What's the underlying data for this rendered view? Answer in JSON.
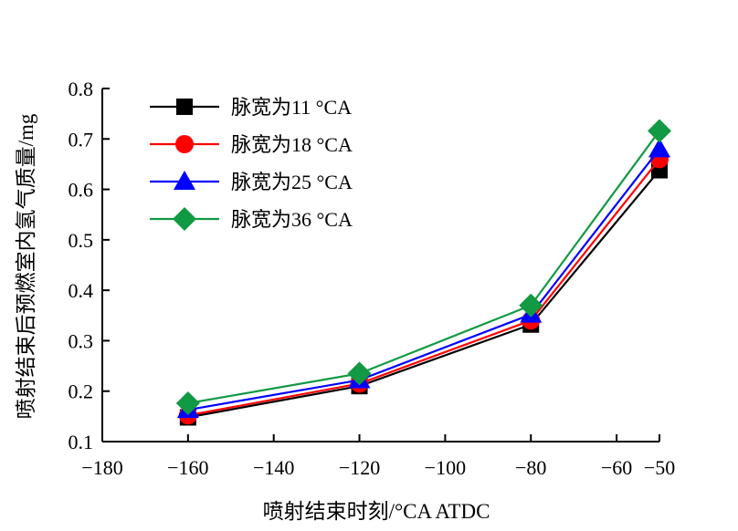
{
  "chart_data": {
    "type": "line",
    "xlabel": "喷射结束时刻/°CA ATDC",
    "ylabel": "喷射结束后预燃室内氢气质量/mg",
    "xlim": [
      -180,
      -50
    ],
    "ylim": [
      0.1,
      0.8
    ],
    "x_ticks": [
      -180,
      -160,
      -140,
      -120,
      -100,
      -80,
      -60,
      -50
    ],
    "x_tick_labels": [
      "−180",
      "−160",
      "−140",
      "−120",
      "−100",
      "−80",
      "−60",
      "−50"
    ],
    "y_ticks": [
      0.1,
      0.2,
      0.3,
      0.4,
      0.5,
      0.6,
      0.7,
      0.8
    ],
    "y_tick_labels": [
      "0.1",
      "0.2",
      "0.3",
      "0.4",
      "0.5",
      "0.6",
      "0.7",
      "0.8"
    ],
    "x": [
      -160,
      -120,
      -80,
      -50
    ],
    "grid": false,
    "legend_position": "top-left",
    "series": [
      {
        "name": "脉宽为11 °CA",
        "color": "#000000",
        "marker": "square",
        "values": [
          0.148,
          0.21,
          0.332,
          0.638
        ]
      },
      {
        "name": "脉宽为18 °CA",
        "color": "#ff0000",
        "marker": "circle",
        "values": [
          0.152,
          0.215,
          0.34,
          0.66
        ]
      },
      {
        "name": "脉宽为25 °CA",
        "color": "#0000ff",
        "marker": "triangle",
        "values": [
          0.163,
          0.222,
          0.352,
          0.68
        ]
      },
      {
        "name": "脉宽为36 °CA",
        "color": "#119944",
        "marker": "diamond",
        "values": [
          0.176,
          0.235,
          0.37,
          0.716
        ]
      }
    ]
  }
}
